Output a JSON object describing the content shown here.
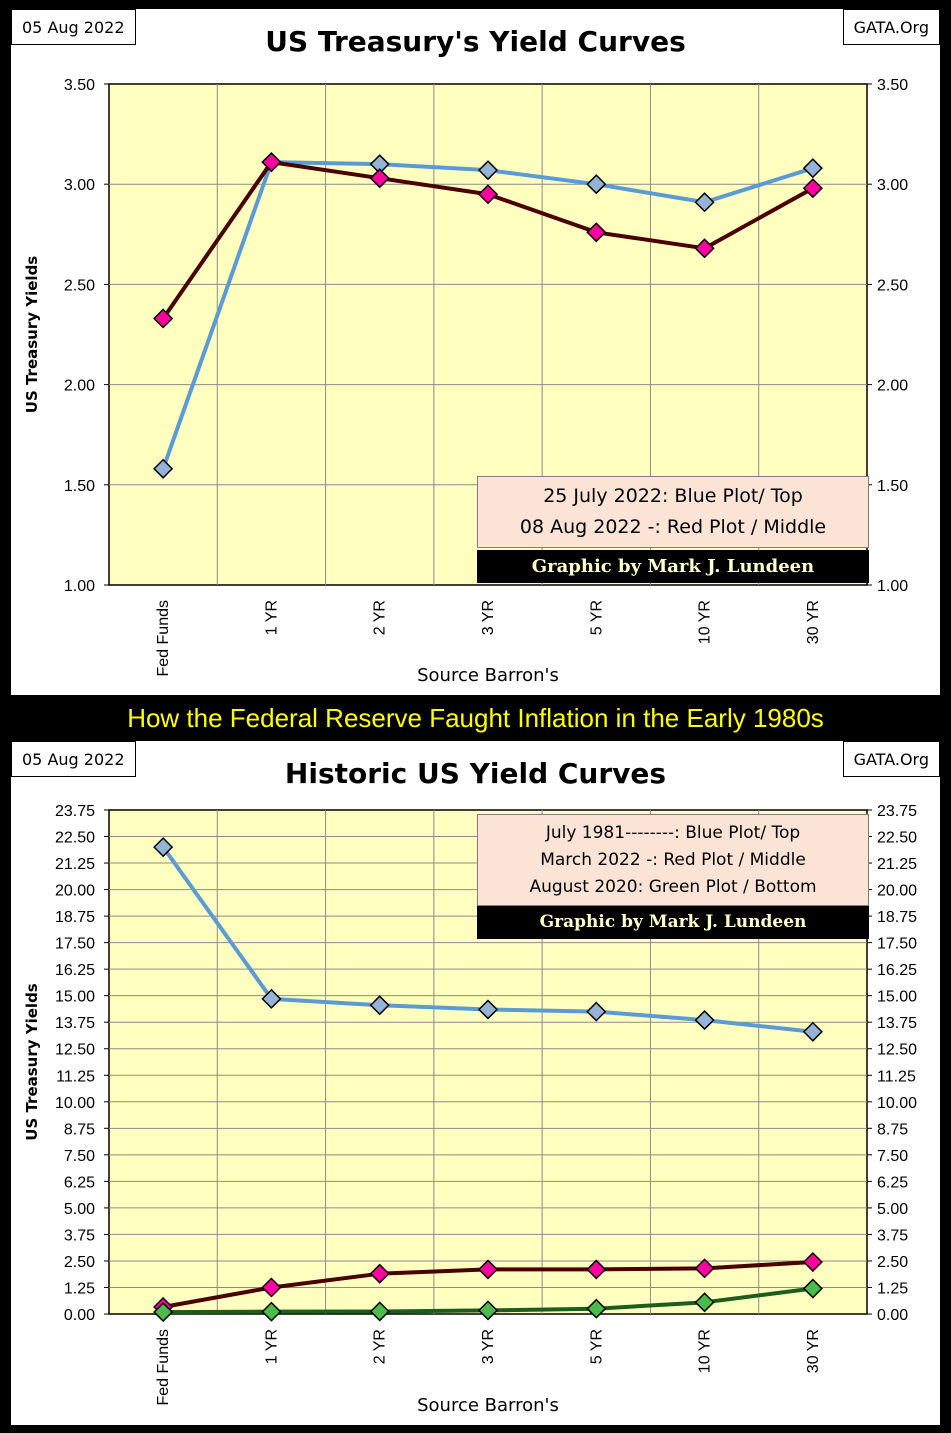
{
  "banner": "How the Federal Reserve Faught Inflation in the Early 1980s",
  "chart_data": [
    {
      "type": "line",
      "date_label": "05 Aug 2022",
      "site_label": "GATA.Org",
      "title": "US Treasury's Yield Curves",
      "xlabel": "Source Barron's",
      "ylabel": "US Treasury Yields",
      "categories": [
        "Fed Funds",
        "1 YR",
        "2 YR",
        "3 YR",
        "5 YR",
        "10 YR",
        "30 YR"
      ],
      "ylim": [
        1.0,
        3.5
      ],
      "ytick_step": 0.5,
      "ytick_labels": [
        "1.00",
        "1.50",
        "2.00",
        "2.50",
        "3.00",
        "3.50"
      ],
      "grid": true,
      "series": [
        {
          "values": [
            1.58,
            3.11,
            3.1,
            3.07,
            3.0,
            2.91,
            3.08
          ],
          "line_color": "#5b9bd5",
          "marker_color": "#95b3d7"
        },
        {
          "values": [
            2.33,
            3.11,
            3.03,
            2.95,
            2.76,
            2.68,
            2.98
          ],
          "line_color": "#4a0000",
          "marker_color": "#ff00a0"
        }
      ],
      "legend": {
        "lines": [
          "25 July 2022: Blue Plot/ Top",
          "08 Aug 2022 -: Red Plot / Middle"
        ],
        "credit": "Graphic by Mark J. Lundeen",
        "placement": "bottom-right"
      }
    },
    {
      "type": "line",
      "date_label": "05 Aug 2022",
      "site_label": "GATA.Org",
      "title": "Historic US Yield Curves",
      "xlabel": "Source Barron's",
      "ylabel": "US Treasury Yields",
      "categories": [
        "Fed Funds",
        "1 YR",
        "2 YR",
        "3 YR",
        "5 YR",
        "10 YR",
        "30 YR"
      ],
      "ylim": [
        0,
        23.75
      ],
      "ytick_step": 1.25,
      "ytick_labels": [
        "0.00",
        "1.25",
        "2.50",
        "3.75",
        "5.00",
        "6.25",
        "7.50",
        "8.75",
        "10.00",
        "11.25",
        "12.50",
        "13.75",
        "15.00",
        "16.25",
        "17.50",
        "18.75",
        "20.00",
        "21.25",
        "22.50",
        "23.75"
      ],
      "grid": true,
      "series": [
        {
          "values": [
            22.0,
            14.85,
            14.55,
            14.35,
            14.25,
            13.85,
            13.3
          ],
          "line_color": "#5b9bd5",
          "marker_color": "#95b3d7"
        },
        {
          "values": [
            0.33,
            1.25,
            1.9,
            2.1,
            2.1,
            2.15,
            2.45
          ],
          "line_color": "#4a0000",
          "marker_color": "#ff00a0"
        },
        {
          "values": [
            0.09,
            0.11,
            0.12,
            0.17,
            0.25,
            0.55,
            1.2
          ],
          "line_color": "#1e5c1e",
          "marker_color": "#4cbb4c"
        }
      ],
      "legend": {
        "lines": [
          "July 1981--------: Blue Plot/ Top",
          "March 2022 -: Red Plot / Middle",
          "August 2020: Green Plot / Bottom"
        ],
        "credit": "Graphic by Mark J. Lundeen",
        "placement": "top-right"
      }
    }
  ]
}
